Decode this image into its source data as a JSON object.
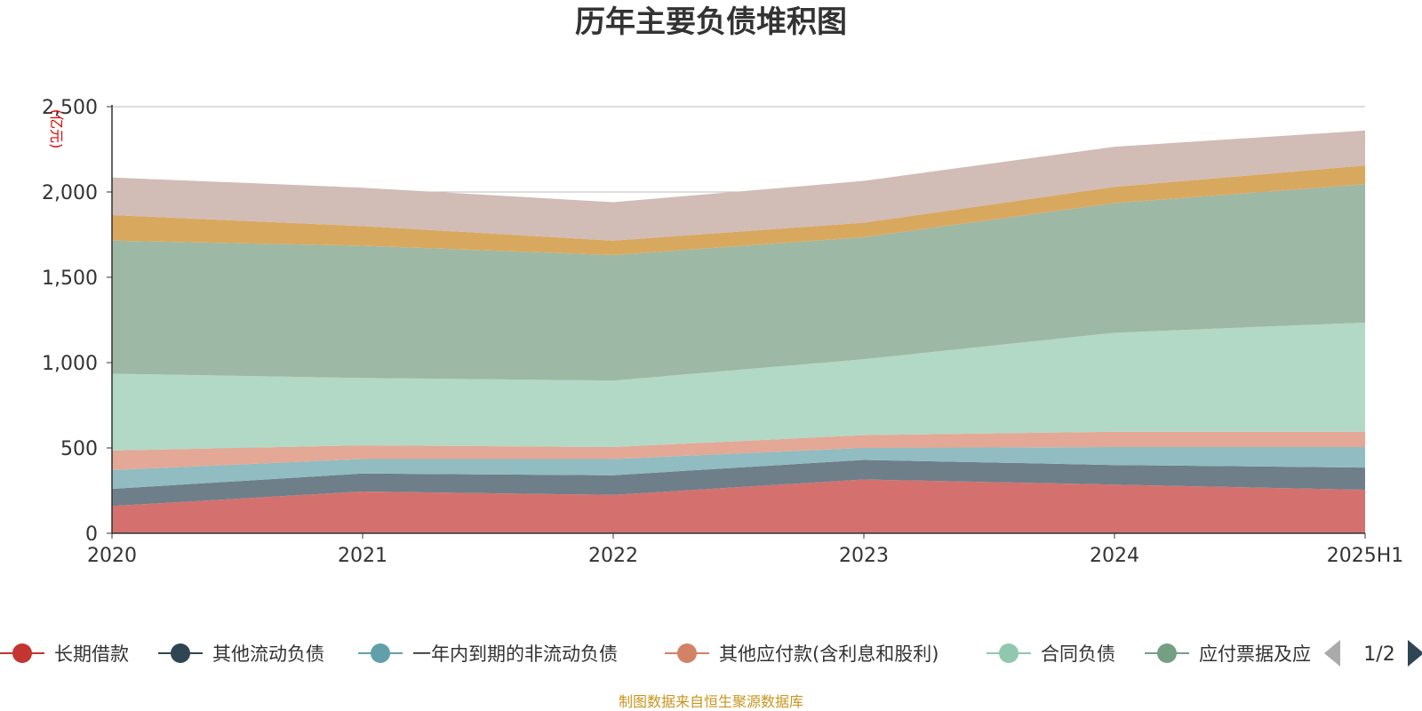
{
  "chart_data": {
    "type": "area",
    "stacked": true,
    "title": "历年主要负债堆积图",
    "unit": "(亿元)",
    "categories": [
      "2020",
      "2021",
      "2022",
      "2023",
      "2024",
      "2025H1"
    ],
    "ylim": [
      0,
      2500
    ],
    "yticks": [
      "0",
      "500",
      "1,000",
      "1,500",
      "2,000",
      "2,500"
    ],
    "ytick_values": [
      0,
      500,
      1000,
      1500,
      2000,
      2500
    ],
    "grid": true,
    "series": [
      {
        "name": "长期借款",
        "color": "#c23531",
        "fill": "#d4716e",
        "values": [
          160,
          245,
          225,
          315,
          285,
          255
        ]
      },
      {
        "name": "其他流动负债",
        "color": "#2f4554",
        "fill": "#6e7f89",
        "values": [
          100,
          105,
          115,
          115,
          115,
          130
        ]
      },
      {
        "name": "一年内到期的非流动负债",
        "color": "#61a0a8",
        "fill": "#90bcc2",
        "values": [
          110,
          85,
          95,
          70,
          105,
          120
        ]
      },
      {
        "name": "其他应付款(含利息和股利)",
        "color": "#d48265",
        "fill": "#e3a896",
        "values": [
          115,
          80,
          70,
          75,
          90,
          90
        ]
      },
      {
        "name": "合同负债",
        "color": "#91c7ae",
        "fill": "#b2d8c6",
        "values": [
          450,
          395,
          390,
          445,
          580,
          640
        ]
      },
      {
        "name": "应付票据及应付账款",
        "color": "#749f83",
        "fill": "#9db8a4",
        "values": [
          780,
          775,
          735,
          715,
          760,
          810
        ]
      },
      {
        "name": "",
        "color": "#ca8622",
        "fill": "#d9a85f",
        "values": [
          150,
          115,
          85,
          85,
          95,
          110
        ]
      },
      {
        "name": "",
        "color": "#bda29a",
        "fill": "#d1bcb6",
        "values": [
          220,
          225,
          225,
          245,
          235,
          205
        ]
      }
    ]
  },
  "legend": {
    "visible_labels": [
      "长期借款",
      "其他流动负债",
      "一年内到期的非流动负债",
      "其他应付款(含利息和股利)",
      "合同负债",
      "应付票据及应"
    ],
    "page_indicator": "1/2"
  },
  "source_note": "制图数据来自恒生聚源数据库"
}
